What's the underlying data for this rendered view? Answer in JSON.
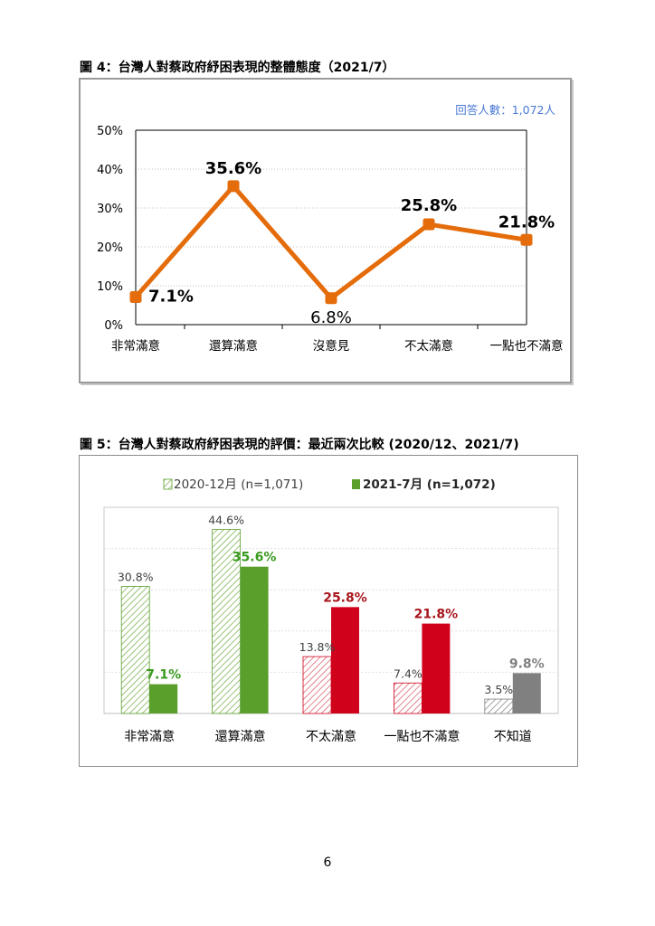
{
  "fig4": {
    "title": "圖 4：台灣人對蔡政府紓困表現的整體態度（2021/7）",
    "note": "回答人數：1,072人"
  },
  "fig5": {
    "title": "圖 5：台灣人對蔡政府紓困表現的評價：最近兩次比較 (2020/12、2021/7)",
    "legend_2020": "2020-12月 (n=1,071)",
    "legend_2021": "2021-7月 (n=1,072)"
  },
  "page_number": "6",
  "colors": {
    "line": "#e46c0a",
    "satisfied": "#5a9e2b",
    "dissatisfied": "#d0021b",
    "dk": "#808080",
    "note": "#4a7ad4",
    "label_green": "#3a9a1f",
    "label_red": "#a8151c",
    "label_gray": "#7f7f7f"
  },
  "chart_data": [
    {
      "type": "line",
      "categories": [
        "非常滿意",
        "還算滿意",
        "沒意見",
        "不太滿意",
        "一點也不滿意"
      ],
      "values": [
        7.1,
        35.6,
        6.8,
        25.8,
        21.8
      ],
      "value_labels": [
        "7.1%",
        "35.6%",
        "6.8%",
        "25.8%",
        "21.8%"
      ],
      "yticks": [
        "0%",
        "10%",
        "20%",
        "30%",
        "40%",
        "50%"
      ],
      "ylim": [
        0,
        50
      ],
      "grid": true
    },
    {
      "type": "bar",
      "categories": [
        "非常滿意",
        "還算滿意",
        "不太滿意",
        "一點也不滿意",
        "不知道"
      ],
      "series": [
        {
          "name": "2020-12月 (n=1,071)",
          "values": [
            30.8,
            44.6,
            13.8,
            7.4,
            3.5
          ],
          "value_labels": [
            "30.8%",
            "44.6%",
            "13.8%",
            "7.4%",
            "3.5%"
          ]
        },
        {
          "name": "2021-7月 (n=1,072)",
          "values": [
            7.1,
            35.6,
            25.8,
            21.8,
            9.8
          ],
          "value_labels": [
            "7.1%",
            "35.6%",
            "25.8%",
            "21.8%",
            "9.8%"
          ]
        }
      ],
      "ylim": [
        0,
        50
      ],
      "grid": true,
      "legend": "top"
    }
  ]
}
